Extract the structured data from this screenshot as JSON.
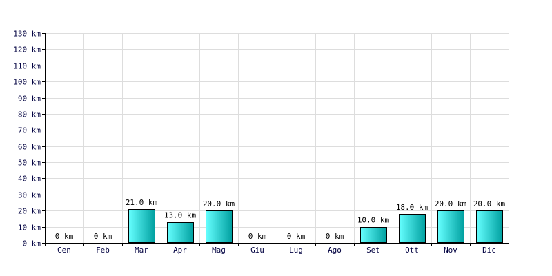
{
  "chart_data": {
    "type": "bar",
    "categories": [
      "Gen",
      "Feb",
      "Mar",
      "Apr",
      "Mag",
      "Giu",
      "Lug",
      "Ago",
      "Set",
      "Ott",
      "Nov",
      "Dic"
    ],
    "values": [
      0,
      0,
      21.0,
      13.0,
      20.0,
      0,
      0,
      0,
      10.0,
      18.0,
      20.0,
      20.0
    ],
    "data_labels": [
      "0 km",
      "0 km",
      "21.0 km",
      "13.0 km",
      "20.0 km",
      "0 km",
      "0 km",
      "0 km",
      "10.0 km",
      "18.0 km",
      "20.0 km",
      "20.0 km"
    ],
    "y_ticks": [
      0,
      10,
      20,
      30,
      40,
      50,
      60,
      70,
      80,
      90,
      100,
      110,
      120,
      130
    ],
    "y_tick_labels": [
      "0 km",
      "10 km",
      "20 km",
      "30 km",
      "40 km",
      "50 km",
      "60 km",
      "70 km",
      "80 km",
      "90 km",
      "100 km",
      "110 km",
      "120 km",
      "130 km"
    ],
    "ylim": [
      0,
      130
    ],
    "title": "",
    "xlabel": "",
    "ylabel": "",
    "grid": true,
    "colors": {
      "bar_light": "#66ffff",
      "bar_dark": "#00a0a0",
      "bar_edge": "#000000",
      "grid": "#dddddd",
      "axis": "#000000",
      "text": "#000040"
    }
  }
}
